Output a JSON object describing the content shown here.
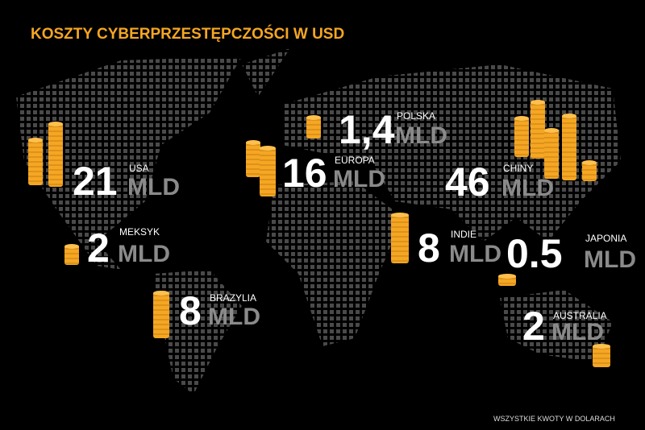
{
  "header": {
    "title": "KOSZTY CYBERPRZESTĘPCZOŚCI W USD"
  },
  "items": [
    {
      "label": "USA",
      "value": "21",
      "unit": "MLD"
    },
    {
      "label": "MEKSYK",
      "value": "2",
      "unit": "MLD"
    },
    {
      "label": "BRAZYLIA",
      "value": "8",
      "unit": "MLD"
    },
    {
      "label": "POLSKA",
      "value": "1,4",
      "unit": "MLD"
    },
    {
      "label": "EUROPA",
      "value": "16",
      "unit": "MLD"
    },
    {
      "label": "CHINY",
      "value": "46",
      "unit": "MLD"
    },
    {
      "label": "INDIE",
      "value": "8",
      "unit": "MLD"
    },
    {
      "label": "JAPONIA",
      "value": "0.5",
      "unit": "MLD"
    },
    {
      "label": "AUSTRALIA",
      "value": "2",
      "unit": "MLD"
    }
  ],
  "footer": {
    "note": "WSZYSTKIE KWOTY W DOLARACH"
  }
}
